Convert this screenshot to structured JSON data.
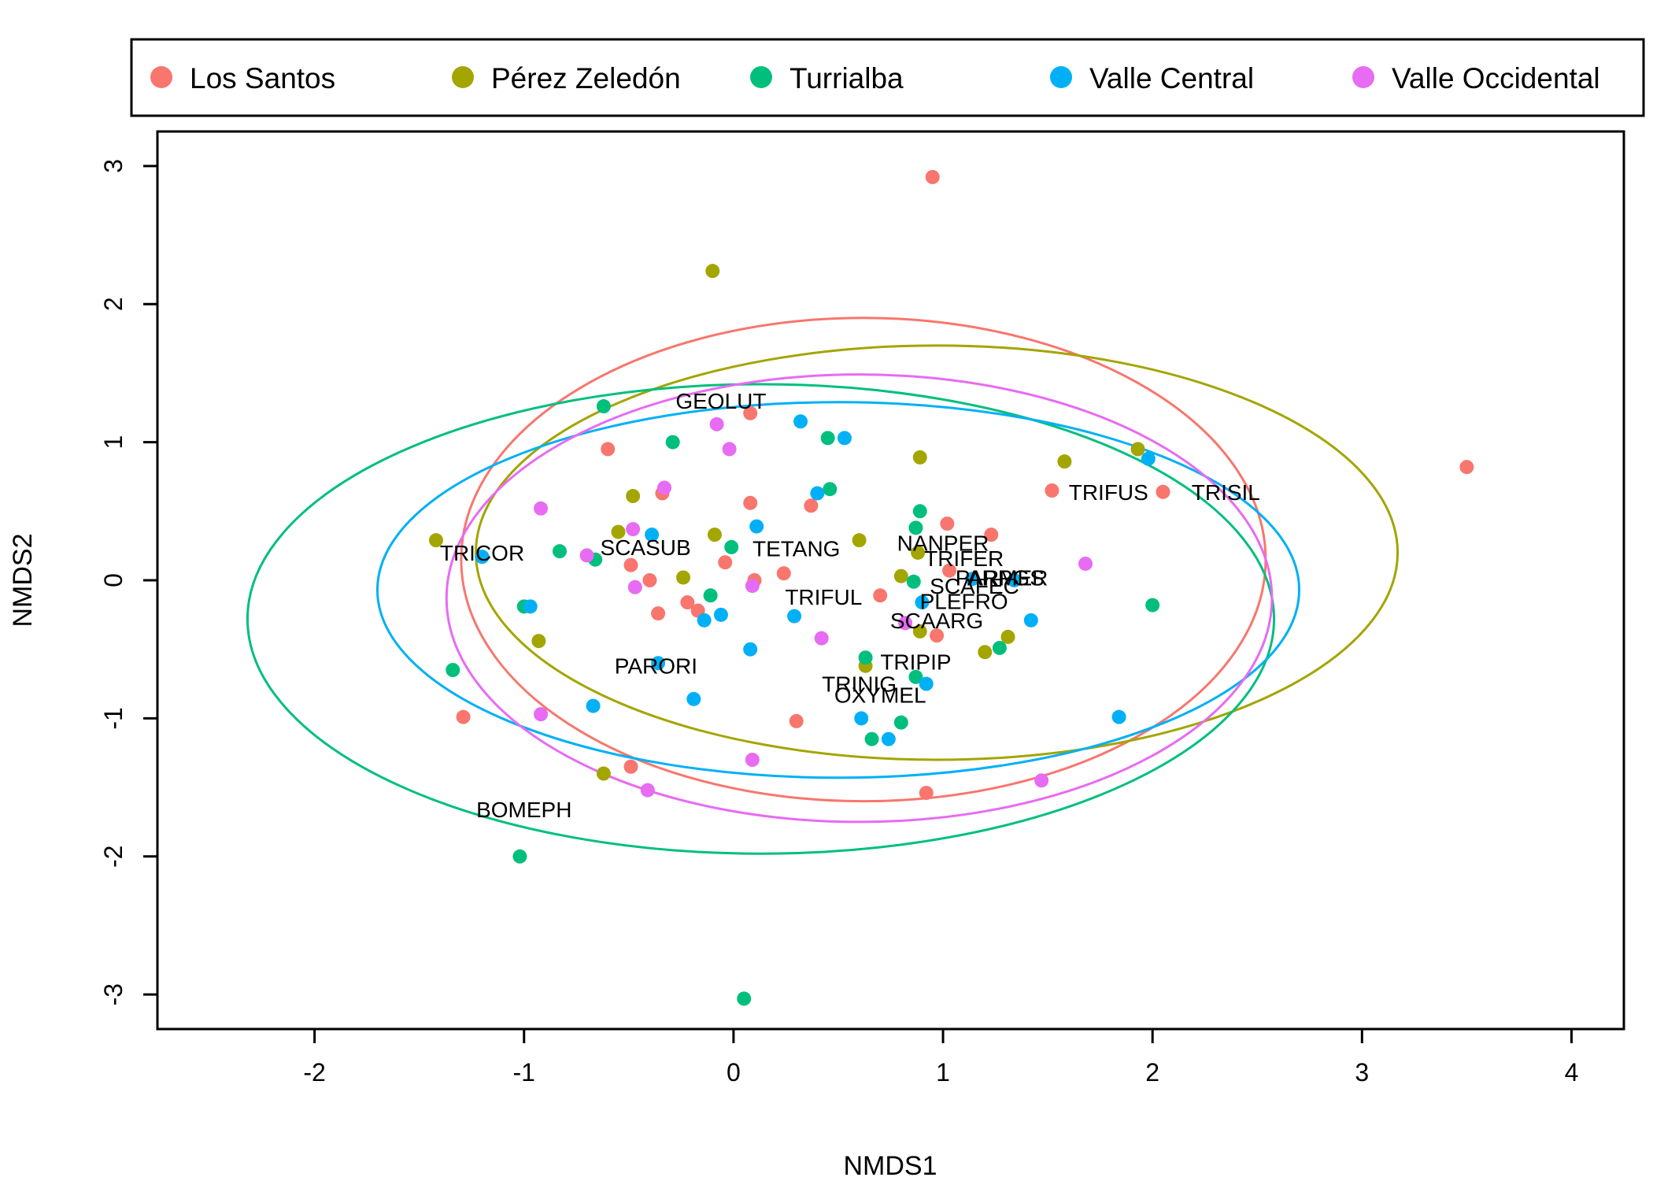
{
  "chart_data": {
    "type": "scatter",
    "xlabel": "NMDS1",
    "ylabel": "NMDS2",
    "xlim": [
      -2.75,
      4.25
    ],
    "ylim": [
      -3.25,
      3.25
    ],
    "x_ticks": [
      -2,
      -1,
      0,
      1,
      2,
      3,
      4
    ],
    "y_ticks": [
      -3,
      -2,
      -1,
      0,
      1,
      2,
      3
    ],
    "x_tick_labels": [
      "-2",
      "-1",
      "0",
      "1",
      "2",
      "3",
      "4"
    ],
    "y_tick_labels": [
      "-3",
      "-2",
      "-1",
      "0",
      "1",
      "2",
      "3"
    ],
    "grid": false,
    "legend_position": "top",
    "series": [
      {
        "name": "Los Santos",
        "color": "#F8766D",
        "points": [
          [
            0.95,
            2.92
          ],
          [
            3.5,
            0.82
          ],
          [
            0.08,
            1.21
          ],
          [
            -0.6,
            0.95
          ],
          [
            -0.34,
            0.63
          ],
          [
            0.08,
            0.56
          ],
          [
            0.37,
            0.54
          ],
          [
            1.52,
            0.65
          ],
          [
            2.05,
            0.64
          ],
          [
            1.02,
            0.41
          ],
          [
            1.23,
            0.33
          ],
          [
            -0.49,
            0.11
          ],
          [
            -0.4,
            0.0
          ],
          [
            -0.04,
            0.13
          ],
          [
            0.1,
            0.0
          ],
          [
            0.24,
            0.05
          ],
          [
            0.7,
            -0.11
          ],
          [
            1.03,
            0.07
          ],
          [
            -0.22,
            -0.16
          ],
          [
            -0.17,
            -0.22
          ],
          [
            -0.36,
            -0.24
          ],
          [
            0.97,
            -0.4
          ],
          [
            -1.29,
            -0.99
          ],
          [
            0.3,
            -1.02
          ],
          [
            -0.49,
            -1.35
          ],
          [
            0.92,
            -1.54
          ]
        ],
        "ellipse": {
          "cx": 0.62,
          "cy": 0.15,
          "rx": 1.92,
          "ry": 1.75,
          "angle": 0
        }
      },
      {
        "name": "Pérez Zeledón",
        "color": "#A3A500",
        "points": [
          [
            -0.1,
            2.24
          ],
          [
            1.93,
            0.95
          ],
          [
            0.89,
            0.89
          ],
          [
            1.58,
            0.86
          ],
          [
            -0.48,
            0.61
          ],
          [
            -0.55,
            0.35
          ],
          [
            -0.09,
            0.33
          ],
          [
            0.6,
            0.29
          ],
          [
            0.88,
            0.2
          ],
          [
            -1.42,
            0.29
          ],
          [
            -0.24,
            0.02
          ],
          [
            0.8,
            0.03
          ],
          [
            0.89,
            -0.37
          ],
          [
            1.31,
            -0.41
          ],
          [
            1.2,
            -0.52
          ],
          [
            -0.93,
            -0.44
          ],
          [
            0.63,
            -0.62
          ],
          [
            -0.62,
            -1.4
          ]
        ],
        "ellipse": {
          "cx": 0.97,
          "cy": 0.2,
          "rx": 2.2,
          "ry": 1.5,
          "angle": 0
        }
      },
      {
        "name": "Turrialba",
        "color": "#00BF7D",
        "points": [
          [
            -0.62,
            1.26
          ],
          [
            -0.29,
            1.0
          ],
          [
            0.45,
            1.03
          ],
          [
            0.46,
            0.66
          ],
          [
            0.89,
            0.5
          ],
          [
            0.87,
            0.38
          ],
          [
            -0.01,
            0.24
          ],
          [
            -0.83,
            0.21
          ],
          [
            -0.66,
            0.15
          ],
          [
            0.86,
            -0.01
          ],
          [
            -0.11,
            -0.11
          ],
          [
            -1.0,
            -0.19
          ],
          [
            2.0,
            -0.18
          ],
          [
            1.27,
            -0.49
          ],
          [
            -1.34,
            -0.65
          ],
          [
            0.63,
            -0.56
          ],
          [
            0.87,
            -0.7
          ],
          [
            0.8,
            -1.03
          ],
          [
            0.66,
            -1.15
          ],
          [
            -1.02,
            -2.0
          ],
          [
            0.05,
            -3.03
          ]
        ],
        "ellipse": {
          "cx": 0.13,
          "cy": -0.28,
          "rx": 2.45,
          "ry": 1.7,
          "angle": 0
        }
      },
      {
        "name": "Valle Central",
        "color": "#00B0F6",
        "points": [
          [
            0.32,
            1.15
          ],
          [
            0.53,
            1.03
          ],
          [
            1.98,
            0.88
          ],
          [
            0.4,
            0.63
          ],
          [
            -0.39,
            0.33
          ],
          [
            0.11,
            0.39
          ],
          [
            -1.2,
            0.17
          ],
          [
            1.14,
            0.01
          ],
          [
            1.34,
            0.0
          ],
          [
            -0.97,
            -0.19
          ],
          [
            0.9,
            -0.16
          ],
          [
            -0.14,
            -0.29
          ],
          [
            -0.06,
            -0.25
          ],
          [
            0.29,
            -0.26
          ],
          [
            1.42,
            -0.29
          ],
          [
            -0.36,
            -0.6
          ],
          [
            0.08,
            -0.5
          ],
          [
            0.92,
            -0.75
          ],
          [
            -0.19,
            -0.86
          ],
          [
            -0.67,
            -0.91
          ],
          [
            0.61,
            -1.0
          ],
          [
            0.74,
            -1.15
          ],
          [
            1.84,
            -0.99
          ]
        ],
        "ellipse": {
          "cx": 0.5,
          "cy": -0.07,
          "rx": 2.2,
          "ry": 1.36,
          "angle": 0
        }
      },
      {
        "name": "Valle Occidental",
        "color": "#E76BF3",
        "points": [
          [
            -0.08,
            1.13
          ],
          [
            -0.02,
            0.95
          ],
          [
            -0.33,
            0.67
          ],
          [
            -0.92,
            0.52
          ],
          [
            -0.48,
            0.37
          ],
          [
            -0.7,
            0.18
          ],
          [
            -0.47,
            -0.05
          ],
          [
            0.09,
            -0.04
          ],
          [
            1.68,
            0.12
          ],
          [
            0.42,
            -0.42
          ],
          [
            0.82,
            -0.31
          ],
          [
            -0.92,
            -0.97
          ],
          [
            0.09,
            -1.3
          ],
          [
            -0.41,
            -1.52
          ],
          [
            1.47,
            -1.45
          ]
        ],
        "ellipse": {
          "cx": 0.6,
          "cy": -0.13,
          "rx": 1.97,
          "ry": 1.62,
          "angle": 0
        }
      }
    ],
    "species_labels": [
      {
        "text": "GEOLUT",
        "x": -0.06,
        "y": 1.3
      },
      {
        "text": "TRIFUS",
        "x": 1.79,
        "y": 0.64
      },
      {
        "text": "TRISIL",
        "x": 2.35,
        "y": 0.64
      },
      {
        "text": "TRICOR",
        "x": -1.2,
        "y": 0.2
      },
      {
        "text": "SCASUB",
        "x": -0.42,
        "y": 0.24
      },
      {
        "text": "TETANG",
        "x": 0.3,
        "y": 0.23
      },
      {
        "text": "NANPER",
        "x": 1.0,
        "y": 0.27
      },
      {
        "text": "TRIFER",
        "x": 1.1,
        "y": 0.16
      },
      {
        "text": "PARMER",
        "x": 1.28,
        "y": 0.02
      },
      {
        "text": "ARPGS",
        "x": 1.3,
        "y": 0.02
      },
      {
        "text": "SCAFEC",
        "x": 1.15,
        "y": -0.04
      },
      {
        "text": "TRIFUL",
        "x": 0.43,
        "y": -0.12
      },
      {
        "text": "PLEFRO",
        "x": 1.1,
        "y": -0.15
      },
      {
        "text": "SCAARG",
        "x": 0.97,
        "y": -0.29
      },
      {
        "text": "PARORI",
        "x": -0.37,
        "y": -0.62
      },
      {
        "text": "TRIPIP",
        "x": 0.87,
        "y": -0.59
      },
      {
        "text": "TRINIG",
        "x": 0.6,
        "y": -0.75
      },
      {
        "text": "OXYMEL",
        "x": 0.7,
        "y": -0.83
      },
      {
        "text": "BOMEPH",
        "x": -1.0,
        "y": -1.66
      }
    ]
  }
}
